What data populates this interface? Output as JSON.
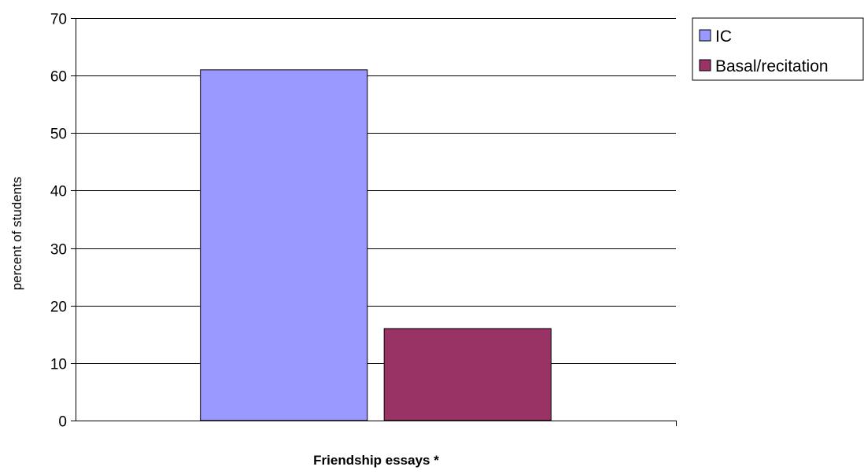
{
  "chart_data": {
    "type": "bar",
    "categories": [
      "Friendship essays *"
    ],
    "series": [
      {
        "name": "IC",
        "values": [
          61
        ],
        "color": "#9999ff"
      },
      {
        "name": "Basal/recitation",
        "values": [
          16
        ],
        "color": "#993366"
      }
    ],
    "xlabel": "Friendship essays *",
    "ylabel": "percent of students",
    "ylim": [
      0,
      70
    ],
    "yticks": [
      0,
      10,
      20,
      30,
      40,
      50,
      60,
      70
    ],
    "grid": true,
    "legend_position": "right"
  }
}
